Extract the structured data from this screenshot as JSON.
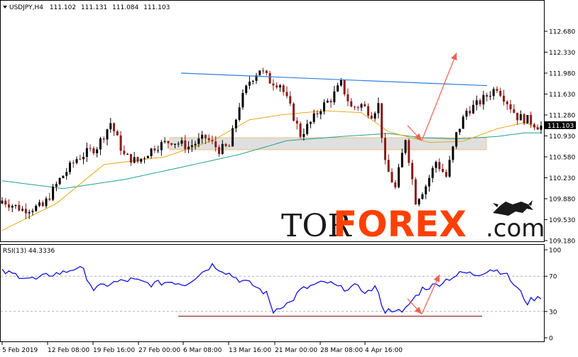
{
  "header": {
    "symbol": "USDJPY,H4",
    "open": "111.102",
    "high": "111.131",
    "low": "111.084",
    "close": "111.103"
  },
  "rsi_header": "RSI(13) 44.3336",
  "price_ticks": [
    "112.680",
    "112.330",
    "111.980",
    "111.630",
    "111.280",
    "110.930",
    "110.580",
    "110.230",
    "109.880",
    "109.530",
    "109.180"
  ],
  "current_price": "111.103",
  "rsi_ticks": [
    "100",
    "70",
    "30",
    "0"
  ],
  "time_labels": [
    "5 Feb 2019",
    "12 Feb 08:00",
    "19 Feb 16:00",
    "27 Feb 00:00",
    "6 Mar 08:00",
    "13 Mar 16:00",
    "21 Mar 00:00",
    "28 Mar 08:00",
    "4 Apr 16:00"
  ],
  "watermark": {
    "tor": "TOR",
    "forex": "FOREX",
    "com": ".com"
  },
  "colors": {
    "bull_candle": "#000000",
    "bear_candle": "#8b1a1a",
    "ma_fast": "#e6a817",
    "ma_slow": "#20a090",
    "trendline": "#2f7fe0",
    "forecast": "#f06050",
    "support_zone": "#d9d9d9",
    "rsi_line": "#1010e0",
    "rsi_level": "#9b2f2f",
    "brand": "#ff4000"
  },
  "chart_data": [
    {
      "type": "candlestick",
      "title": "USDJPY,H4",
      "ylim": [
        109.18,
        112.8
      ],
      "x_labels": [
        "5 Feb 2019",
        "12 Feb 08:00",
        "19 Feb 16:00",
        "27 Feb 00:00",
        "6 Mar 08:00",
        "13 Mar 16:00",
        "21 Mar 00:00",
        "28 Mar 08:00",
        "4 Apr 16:00"
      ],
      "close_path": [
        [
          0,
          109.85
        ],
        [
          6,
          109.7
        ],
        [
          12,
          109.75
        ],
        [
          17,
          110.2
        ],
        [
          22,
          110.55
        ],
        [
          28,
          110.75
        ],
        [
          32,
          111.15
        ],
        [
          36,
          110.6
        ],
        [
          40,
          110.5
        ],
        [
          45,
          110.75
        ],
        [
          50,
          110.85
        ],
        [
          55,
          110.75
        ],
        [
          60,
          110.9
        ],
        [
          64,
          110.7
        ],
        [
          67,
          110.75
        ],
        [
          70,
          111.45
        ],
        [
          73,
          111.85
        ],
        [
          76,
          112.05
        ],
        [
          79,
          111.85
        ],
        [
          82,
          111.8
        ],
        [
          85,
          111.4
        ],
        [
          88,
          110.95
        ],
        [
          91,
          111.15
        ],
        [
          94,
          111.4
        ],
        [
          97,
          111.55
        ],
        [
          100,
          111.8
        ],
        [
          103,
          111.4
        ],
        [
          106,
          111.45
        ],
        [
          109,
          111.3
        ],
        [
          111,
          111.45
        ],
        [
          113,
          110.45
        ],
        [
          116,
          110.05
        ],
        [
          119,
          110.9
        ],
        [
          122,
          109.85
        ],
        [
          125,
          110.1
        ],
        [
          128,
          110.5
        ],
        [
          131,
          110.25
        ],
        [
          134,
          110.95
        ],
        [
          137,
          111.35
        ],
        [
          140,
          111.45
        ],
        [
          143,
          111.6
        ],
        [
          146,
          111.75
        ],
        [
          149,
          111.5
        ],
        [
          152,
          111.25
        ],
        [
          155,
          111.2
        ],
        [
          158,
          111.1
        ],
        [
          159,
          111.103
        ]
      ],
      "series": [
        {
          "name": "MA fast",
          "points": [
            [
              0,
              109.35
            ],
            [
              16,
              109.8
            ],
            [
              30,
              110.45
            ],
            [
              48,
              110.58
            ],
            [
              62,
              110.85
            ],
            [
              73,
              111.2
            ],
            [
              82,
              111.28
            ],
            [
              95,
              111.35
            ],
            [
              106,
              111.32
            ],
            [
              114,
              111.0
            ],
            [
              126,
              110.82
            ],
            [
              136,
              110.84
            ],
            [
              146,
              111.05
            ],
            [
              154,
              111.15
            ],
            [
              159,
              111.05
            ]
          ]
        },
        {
          "name": "MA slow",
          "points": [
            [
              0,
              110.18
            ],
            [
              18,
              110.05
            ],
            [
              36,
              110.2
            ],
            [
              54,
              110.42
            ],
            [
              70,
              110.62
            ],
            [
              84,
              110.85
            ],
            [
              100,
              110.92
            ],
            [
              114,
              110.97
            ],
            [
              124,
              110.9
            ],
            [
              134,
              110.88
            ],
            [
              146,
              110.92
            ],
            [
              154,
              110.98
            ],
            [
              159,
              110.98
            ]
          ]
        }
      ],
      "trendline": [
        [
          73,
          111.98
        ],
        [
          159,
          111.77
        ]
      ],
      "support_zone": [
        110.7,
        110.9
      ],
      "forecast": [
        [
          159,
          111.103
        ],
        [
          163,
          110.85
        ],
        [
          174,
          112.32
        ]
      ]
    },
    {
      "type": "line",
      "title": "RSI(13) 44.3336",
      "ylim": [
        0,
        100
      ],
      "series": [
        {
          "name": "RSI(13)",
          "points": [
            [
              0,
              75
            ],
            [
              6,
              70
            ],
            [
              10,
              66
            ],
            [
              14,
              72
            ],
            [
              18,
              74
            ],
            [
              22,
              80
            ],
            [
              24,
              76
            ],
            [
              27,
              55
            ],
            [
              32,
              62
            ],
            [
              38,
              66
            ],
            [
              44,
              61
            ],
            [
              50,
              64
            ],
            [
              54,
              61
            ],
            [
              57,
              69
            ],
            [
              62,
              83
            ],
            [
              66,
              75
            ],
            [
              70,
              66
            ],
            [
              74,
              60
            ],
            [
              78,
              50
            ],
            [
              80,
              30
            ],
            [
              82,
              36
            ],
            [
              85,
              40
            ],
            [
              88,
              54
            ],
            [
              92,
              60
            ],
            [
              96,
              63
            ],
            [
              100,
              56
            ],
            [
              104,
              58
            ],
            [
              108,
              52
            ],
            [
              110,
              58
            ],
            [
              113,
              30
            ],
            [
              116,
              33
            ],
            [
              118,
              27
            ],
            [
              120,
              38
            ],
            [
              124,
              56
            ],
            [
              128,
              60
            ],
            [
              132,
              68
            ],
            [
              136,
              74
            ],
            [
              140,
              72
            ],
            [
              144,
              78
            ],
            [
              148,
              75
            ],
            [
              152,
              56
            ],
            [
              155,
              40
            ],
            [
              157,
              45
            ],
            [
              159,
              44.3
            ]
          ]
        }
      ],
      "levels": [
        70,
        30
      ],
      "support_line": [
        [
          63,
          25
        ],
        [
          159,
          25
        ]
      ],
      "forecast": [
        [
          159,
          44.3
        ],
        [
          163,
          27
        ],
        [
          172,
          72
        ]
      ]
    }
  ]
}
